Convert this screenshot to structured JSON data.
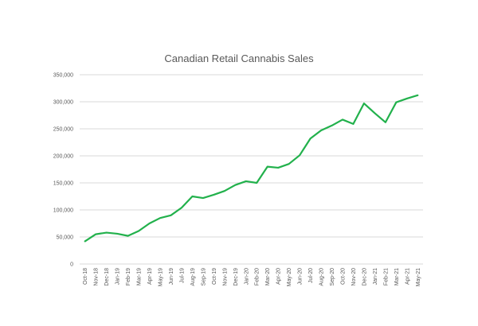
{
  "chart_data": {
    "type": "line",
    "title": "Canadian Retail Cannabis Sales",
    "xlabel": "",
    "ylabel": "",
    "ylim": [
      0,
      350000
    ],
    "yticks": [
      0,
      50000,
      100000,
      150000,
      200000,
      250000,
      300000,
      350000
    ],
    "ytick_labels": [
      "0",
      "50,000",
      "100,000",
      "150,000",
      "200,000",
      "250,000",
      "300,000",
      "350,000"
    ],
    "grid": true,
    "categories": [
      "Oct-18",
      "Nov-18",
      "Dec-18",
      "Jan-19",
      "Feb-19",
      "Mar-19",
      "Apr-19",
      "May-19",
      "Jun-19",
      "Jul-19",
      "Aug-19",
      "Sep-19",
      "Oct-19",
      "Nov-19",
      "Dec-19",
      "Jan-20",
      "Feb-20",
      "Mar-20",
      "Apr-20",
      "May-20",
      "Jun-20",
      "Jul-20",
      "Aug-20",
      "Sep-20",
      "Oct-20",
      "Nov-20",
      "Dec-20",
      "Jan-21",
      "Feb-21",
      "Mar-21",
      "Apr-21",
      "May-21"
    ],
    "series": [
      {
        "name": "Canadian Retail Cannabis Sales",
        "color": "#22b14c",
        "values": [
          42000,
          55000,
          58000,
          56000,
          52000,
          61000,
          75000,
          85000,
          90000,
          104000,
          125000,
          122000,
          128000,
          135000,
          146000,
          153000,
          150000,
          180000,
          178000,
          185000,
          201000,
          232000,
          247000,
          256000,
          267000,
          259000,
          297000,
          279000,
          262000,
          299000,
          306000,
          312000
        ]
      }
    ]
  }
}
